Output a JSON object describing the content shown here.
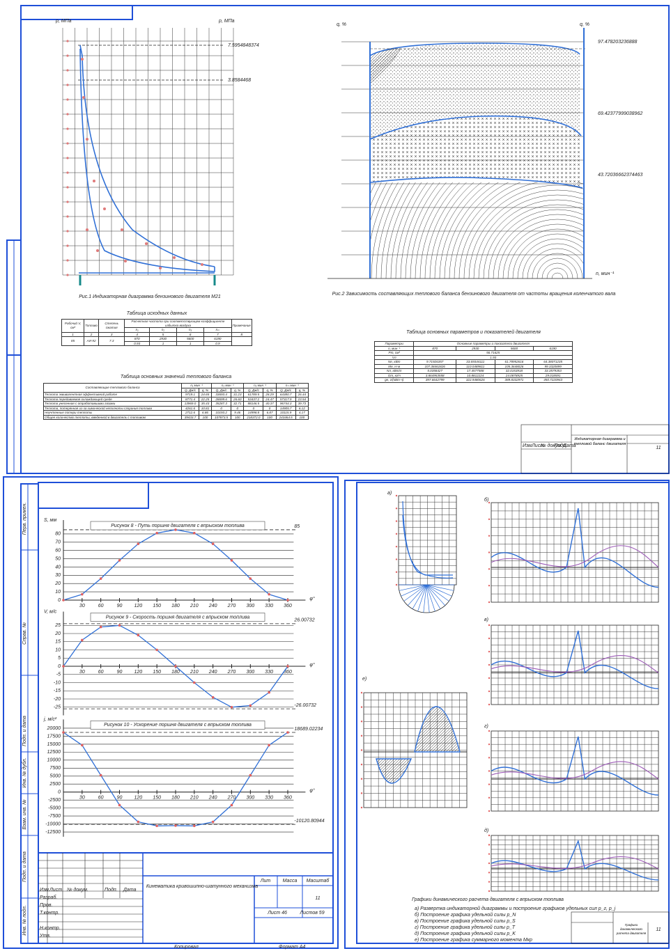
{
  "sheet1": {
    "fig1_axis_left": "p, МПа",
    "fig1_axis_right": "p, МПа",
    "fig1_annotations": [
      "7.5954848374",
      "3.8584468"
    ],
    "fig1_caption": "Рис.1 Индикаторная диаграмма бензинового двигателя М21",
    "fig2_axis_left": "q, %",
    "fig2_axis_right": "q, %",
    "fig2_axis_x": "n, мин⁻¹",
    "fig2_annotations": [
      "97.478203236888",
      "69.42377999038962",
      "43.72036662374463"
    ],
    "fig2_caption": "Рис.2 Зависимость составляющих теплового баланса бензинового двигателя от частоты вращения коленчатого вала",
    "table1": {
      "title": "Таблица исходных данных",
      "rows": [
        [
          "Рабочий V, см³",
          "Топливо",
          "Степень сжатия",
          "Расчетная частота при соответствующем коэффициенте избытка воздуха",
          "Примечание"
        ],
        [
          "n₁",
          "n₂",
          "n₃",
          "nₘ"
        ],
        [
          "1",
          "2",
          "3",
          "4",
          "5",
          "6",
          "7",
          "8"
        ],
        [
          "85",
          "АИ-92",
          "7.3",
          "870",
          "2930",
          "5600",
          "6190"
        ],
        [
          "0.93",
          "1",
          "1",
          "0.9"
        ]
      ]
    },
    "table2": {
      "title": "Таблица основных значений теплового баланса",
      "rows": [
        [
          "Составляющие теплового баланса",
          "n₁ мин⁻¹",
          "n₂ мин⁻¹",
          "n₃ мин⁻¹",
          "nₘ мин⁻¹"
        ],
        [
          "Q, Дж/с",
          "q, %",
          "Q, Дж/с",
          "q, %",
          "Q, Дж/с",
          "q, %",
          "Q, Дж/с",
          "q, %"
        ],
        [
          "Теплота эквивалентная эффективной работе",
          "9719.1",
          "24.65",
          "33693.4",
          "31.23",
          "61789.5",
          "28.29",
          "64380.7",
          "26.44"
        ],
        [
          "Теплота передаваемая охлаждающей среде",
          "8771.4",
          "22.25",
          "28699.6",
          "26.60",
          "53437.2",
          "24.47",
          "57317.9",
          "23.54"
        ],
        [
          "Теплота унесенная с отработавшими газами",
          "13969.0",
          "35.43",
          "35287.3",
          "32.71",
          "88146.5",
          "40.37",
          "96744.3",
          "39.73"
        ],
        [
          "Теплота, потерянная из-за химической неполноты сгорания топлива",
          "4261.6",
          "10.81",
          "0",
          "0",
          "0",
          "0",
          "14905.7",
          "6.12"
        ],
        [
          "Неучтенные потери теплоты",
          "2712.6",
          "6.86",
          "10193.2",
          "9.46",
          "14998.8",
          "6.87",
          "10115.9",
          "4.17"
        ],
        [
          "Общее количество теплоты, введенной в двигатель с топливом",
          "39433.7",
          "100",
          "107873.5",
          "100",
          "218372.0",
          "100",
          "243464.5",
          "100"
        ]
      ]
    },
    "table3": {
      "title": "Таблица основных параметров и показателей двигателя",
      "rows": [
        [
          "Параметры",
          "Основные параметры и показатели двигателя"
        ],
        [
          "n, мин⁻¹",
          "870",
          "2930",
          "5600",
          "6190"
        ],
        [
          "Pт, см³",
          "56.71625"
        ],
        [
          "Vл",
          "1.93"
        ],
        [
          "Nе, кВт",
          "9.71926357",
          "33.69344111",
          "61.78952616",
          "64.38071235"
        ],
        [
          "Mе, Н·м",
          "107.38461826",
          "110.0489811",
          "105.3648026",
          "99.3320899"
        ],
        [
          "Nл, кВт/л",
          "5.0358427",
          "17.4577588",
          "32.0153918",
          "33.3579353"
        ],
        [
          "Gт, кг/ч",
          "3.864953558",
          "10.8812224",
          "24.0878925",
          "29.018591"
        ],
        [
          "gе, г/(кВт·ч)",
          "397.6642799",
          "322.9480626",
          "389.8332971",
          "450.7220943"
        ]
      ]
    },
    "stamp": {
      "title": "Индикаторная диаграмма и тепловой баланс двигателя",
      "number": "11",
      "columns": [
        "Изм.",
        "Лист",
        "№ докум.",
        "Подп.",
        "Дата"
      ]
    }
  },
  "chart_data": [
    {
      "type": "line",
      "title": "Рисунок 8 - Путь поршня двигателя с впрыском топлива",
      "ylabel": "S, мм",
      "xlabel": "φ°",
      "x": [
        0,
        30,
        60,
        90,
        120,
        150,
        180,
        210,
        240,
        270,
        300,
        330,
        360
      ],
      "series": [
        {
          "color": "#2f6fd6",
          "values": [
            0,
            7,
            26,
            48,
            68,
            81,
            85,
            81,
            68,
            48,
            26,
            7,
            0
          ]
        }
      ],
      "xlim": [
        0,
        375
      ],
      "ylim": [
        0,
        90
      ],
      "xticks": [
        30,
        60,
        90,
        120,
        150,
        180,
        210,
        240,
        270,
        300,
        330,
        360
      ],
      "yticks": [
        0,
        10,
        20,
        30,
        40,
        50,
        60,
        70,
        80
      ],
      "hlines": [
        85
      ],
      "grid": true
    },
    {
      "type": "line",
      "title": "Рисунок 9 - Скорость поршня двигателя с впрыском топлива",
      "ylabel": "V, м/с",
      "xlabel": "φ°",
      "x": [
        0,
        30,
        60,
        90,
        120,
        150,
        180,
        210,
        240,
        270,
        300,
        330,
        360
      ],
      "series": [
        {
          "color": "#2f6fd6",
          "values": [
            0,
            16,
            24,
            25,
            19,
            10,
            0,
            -10,
            -19,
            -25,
            -24,
            -16,
            0
          ]
        }
      ],
      "xlim": [
        0,
        375
      ],
      "ylim": [
        -30,
        30
      ],
      "xticks": [
        30,
        60,
        90,
        120,
        150,
        180,
        210,
        240,
        270,
        300,
        330,
        360
      ],
      "yticks": [
        25,
        20,
        15,
        10,
        5,
        0,
        -5,
        -10,
        -15,
        -20,
        -25
      ],
      "hlines": [
        26.00732,
        -26.00732
      ],
      "grid": true
    },
    {
      "type": "line",
      "title": "Рисунок 10 - Ускорение поршня двигателя с впрыском топлива",
      "ylabel": "j, м/с²",
      "xlabel": "φ°",
      "x": [
        0,
        30,
        60,
        90,
        120,
        150,
        180,
        210,
        240,
        270,
        300,
        330,
        360
      ],
      "series": [
        {
          "color": "#2f6fd6",
          "values": [
            18689,
            14690,
            5256,
            -4088,
            -9344,
            -10600,
            -10512,
            -10600,
            -9344,
            -4088,
            5256,
            14690,
            18689
          ]
        }
      ],
      "xlim": [
        0,
        375
      ],
      "ylim": [
        -14000,
        21000
      ],
      "xticks": [
        30,
        60,
        90,
        120,
        150,
        180,
        210,
        240,
        270,
        300,
        330,
        360
      ],
      "yticks": [
        20000,
        17500,
        15000,
        12500,
        10000,
        7500,
        5000,
        2500,
        0,
        -2500,
        -5000,
        -7500,
        -10000,
        -12500
      ],
      "hlines": [
        18689.02234,
        -10120.80944
      ],
      "grid": true
    }
  ],
  "sheet2": {
    "side_labels": [
      "Перв. примен.",
      "Справ. №",
      "Подп. и дата",
      "Инв. № дубл.",
      "Взам. инв. №",
      "Подп. и дата",
      "Инв. № подл."
    ],
    "stamp_columns": [
      "Изм.",
      "Лист",
      "№ докум.",
      "Подп.",
      "Дата"
    ],
    "stamp_rows": [
      "Разраб.",
      "Пров.",
      "Т.контр.",
      "Н.контр.",
      "Утв."
    ],
    "title": "Кинематика кривошипно-шатунного механизма",
    "lit": "Лит",
    "mass": "Масса",
    "scale": "Масштаб",
    "number": "11",
    "sheet": "Лист 46",
    "sheets": "Листов 59",
    "copy": "Копировал",
    "format": "Формат А4"
  },
  "sheet3": {
    "panel_labels": [
      "а)",
      "б)",
      "в)",
      "г)",
      "д)",
      "е)"
    ],
    "caption": "Графики динамического расчета двигателя с впрыском топлива",
    "notes": [
      "а) Развертка индикаторной диаграммы и построение графиков удельных сил p_г, p_j",
      "б) Построение графика удельной силы p_N",
      "в) Построение графика удельной силы p_S",
      "г) Построение графика удельной силы p_T",
      "д) Построение графика удельной силы p_K",
      "е) Построение графика суммарного момента Mкр"
    ],
    "stamp_title": "Графики динамического расчета двигателя",
    "number": "11"
  }
}
